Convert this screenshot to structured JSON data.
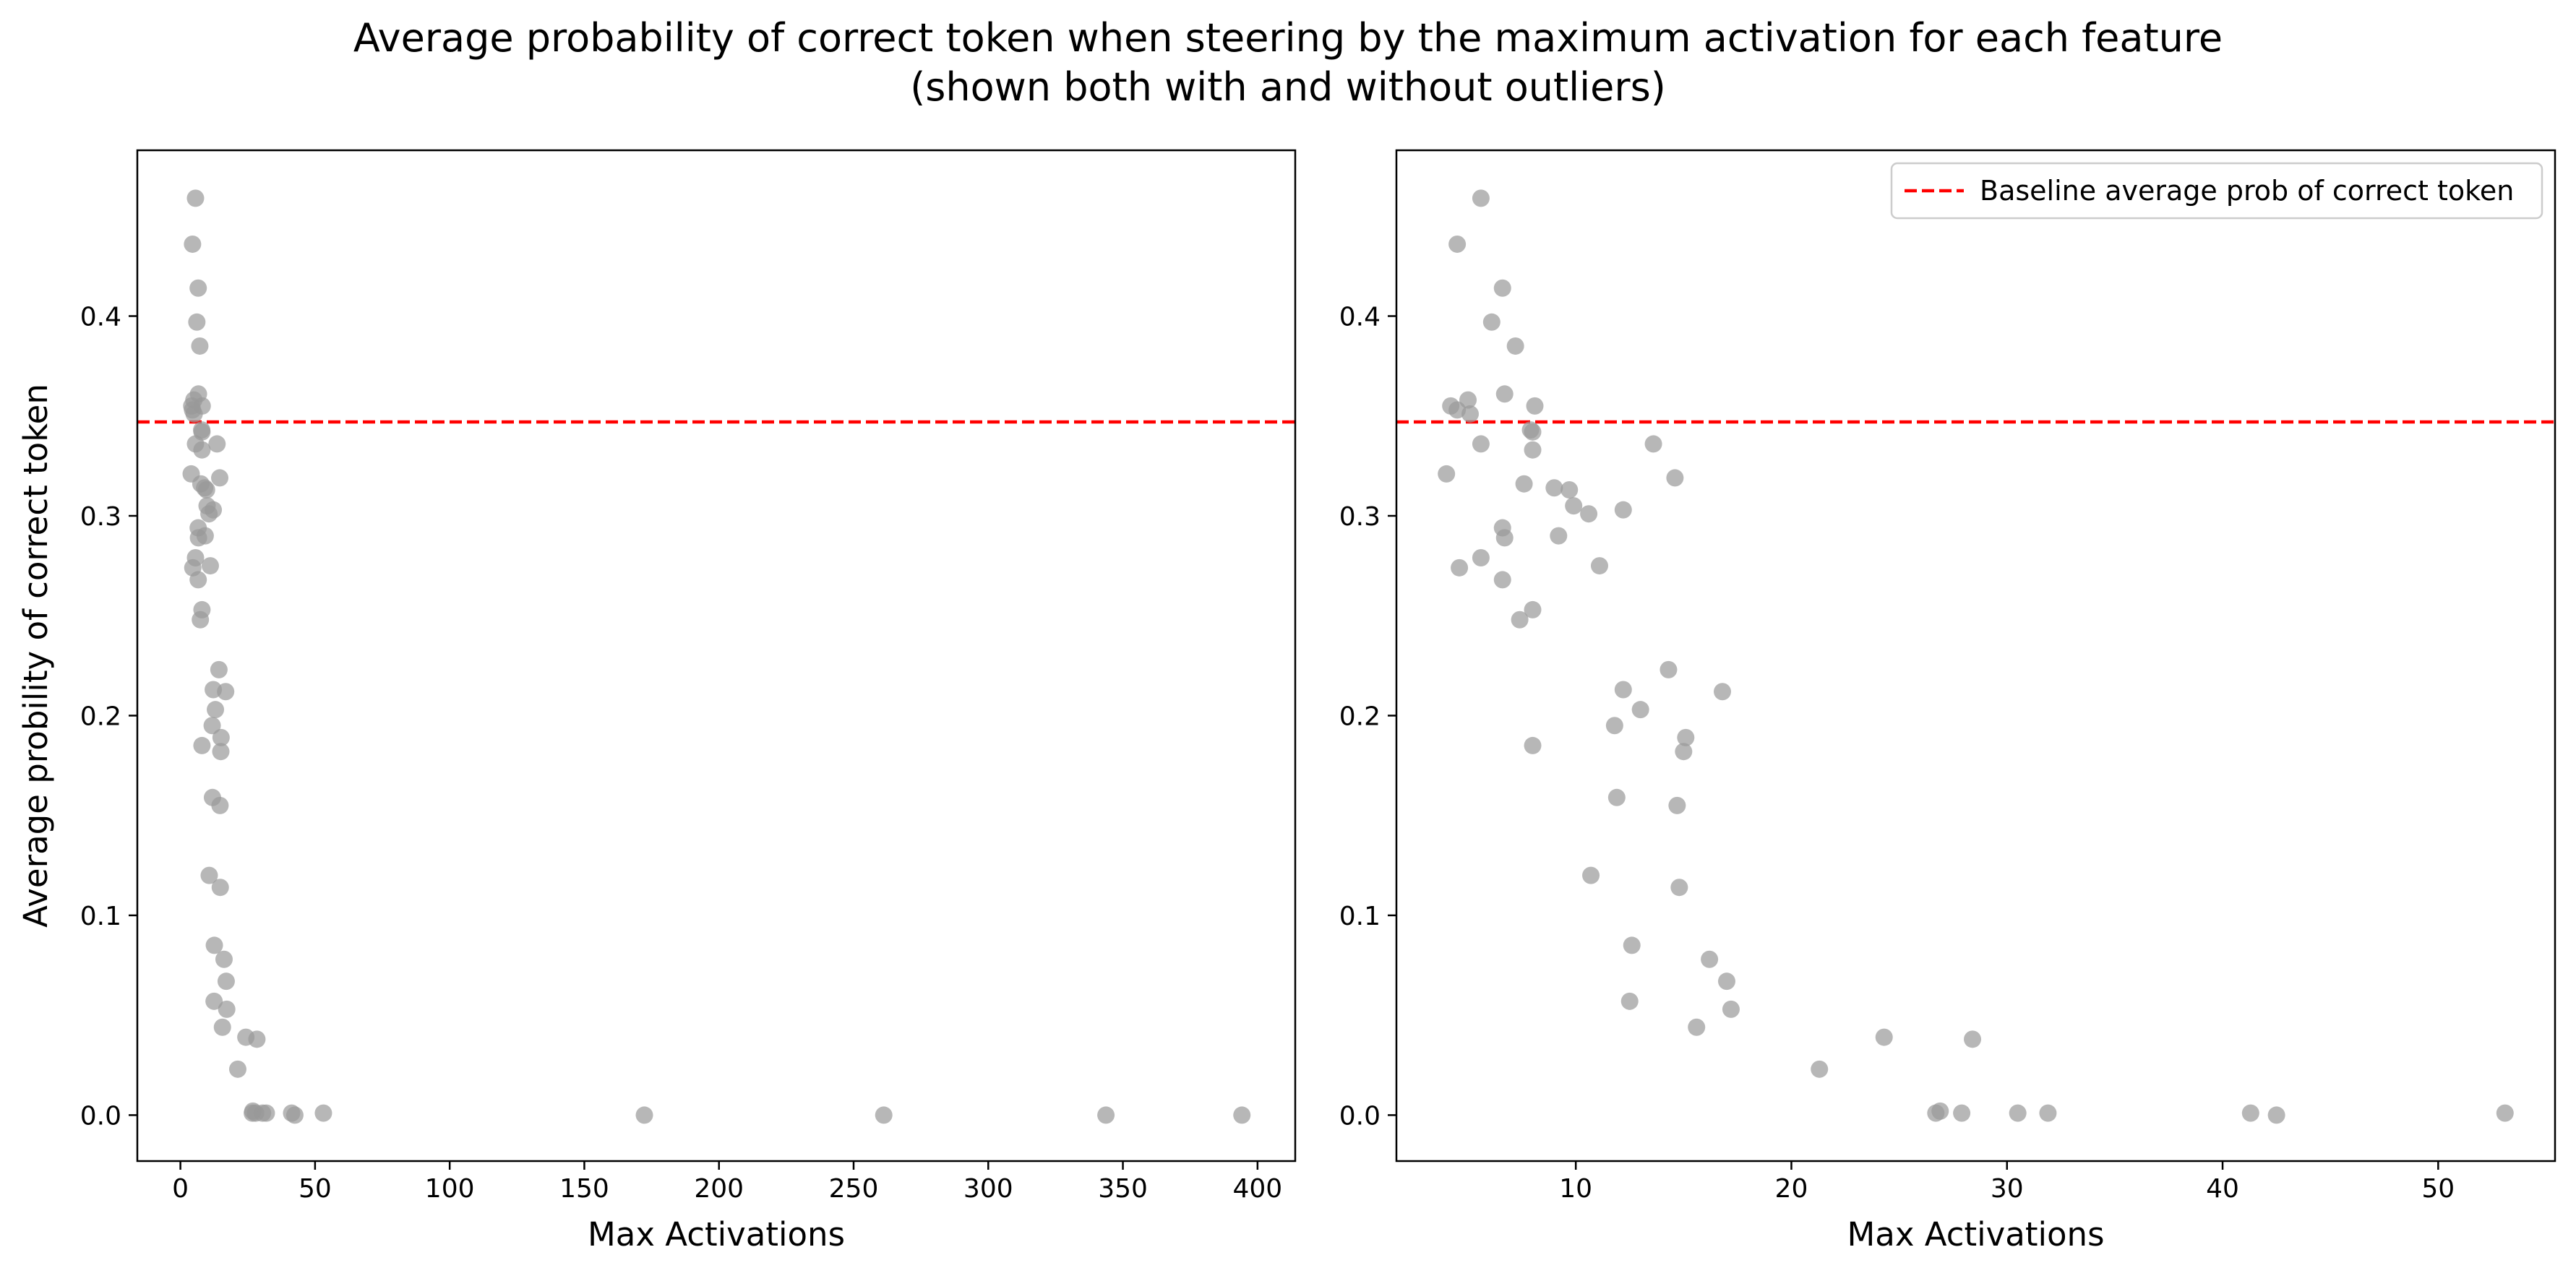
{
  "figure": {
    "title_line1": "Average probability of correct token when steering by the maximum activation for each feature",
    "title_line2": "(shown both with and without outliers)"
  },
  "chart_data": [
    {
      "type": "scatter",
      "xlabel": "Max Activations",
      "ylabel": "Average probility of correct token",
      "xlim": [
        -16,
        414
      ],
      "ylim": [
        -0.023,
        0.483
      ],
      "xticks": [
        0,
        50,
        100,
        150,
        200,
        250,
        300,
        350,
        400
      ],
      "yticks": [
        0.0,
        0.1,
        0.2,
        0.3,
        0.4
      ],
      "ytick_labels": [
        "0.0",
        "0.1",
        "0.2",
        "0.3",
        "0.4"
      ],
      "baseline": 0.347,
      "grid": false,
      "points": [
        [
          5.6,
          0.459
        ],
        [
          4.5,
          0.436
        ],
        [
          6.6,
          0.414
        ],
        [
          6.1,
          0.397
        ],
        [
          7.2,
          0.385
        ],
        [
          6.7,
          0.361
        ],
        [
          4.2,
          0.355
        ],
        [
          8.1,
          0.355
        ],
        [
          5.0,
          0.358
        ],
        [
          5.1,
          0.351
        ],
        [
          4.5,
          0.353
        ],
        [
          7.9,
          0.343
        ],
        [
          8.0,
          0.342
        ],
        [
          5.6,
          0.336
        ],
        [
          8.0,
          0.333
        ],
        [
          13.6,
          0.336
        ],
        [
          4.0,
          0.321
        ],
        [
          14.6,
          0.319
        ],
        [
          7.6,
          0.316
        ],
        [
          9.0,
          0.314
        ],
        [
          9.7,
          0.313
        ],
        [
          9.9,
          0.305
        ],
        [
          12.2,
          0.303
        ],
        [
          10.6,
          0.301
        ],
        [
          6.6,
          0.294
        ],
        [
          6.7,
          0.289
        ],
        [
          9.2,
          0.29
        ],
        [
          5.6,
          0.279
        ],
        [
          4.6,
          0.274
        ],
        [
          11.1,
          0.275
        ],
        [
          6.6,
          0.268
        ],
        [
          8.0,
          0.253
        ],
        [
          7.4,
          0.248
        ],
        [
          14.3,
          0.223
        ],
        [
          12.2,
          0.213
        ],
        [
          16.8,
          0.212
        ],
        [
          13.0,
          0.203
        ],
        [
          11.8,
          0.195
        ],
        [
          15.1,
          0.189
        ],
        [
          8.0,
          0.185
        ],
        [
          15.0,
          0.182
        ],
        [
          11.9,
          0.159
        ],
        [
          14.7,
          0.155
        ],
        [
          10.7,
          0.12
        ],
        [
          14.8,
          0.114
        ],
        [
          12.6,
          0.085
        ],
        [
          16.2,
          0.078
        ],
        [
          17.0,
          0.067
        ],
        [
          12.5,
          0.057
        ],
        [
          17.2,
          0.053
        ],
        [
          15.6,
          0.044
        ],
        [
          24.3,
          0.039
        ],
        [
          28.4,
          0.038
        ],
        [
          21.3,
          0.023
        ],
        [
          26.7,
          0.001
        ],
        [
          26.9,
          0.002
        ],
        [
          27.9,
          0.001
        ],
        [
          30.5,
          0.001
        ],
        [
          31.9,
          0.001
        ],
        [
          41.3,
          0.001
        ],
        [
          42.5,
          0.0
        ],
        [
          53.1,
          0.001
        ],
        [
          172.3,
          0.0
        ],
        [
          261.2,
          0.0
        ],
        [
          343.7,
          0.0
        ],
        [
          394.2,
          0.0
        ]
      ]
    },
    {
      "type": "scatter",
      "xlabel": "Max Activations",
      "xlim": [
        1.68,
        55.42
      ],
      "ylim": [
        -0.023,
        0.483
      ],
      "xticks": [
        10,
        20,
        30,
        40,
        50
      ],
      "yticks": [
        0.0,
        0.1,
        0.2,
        0.3,
        0.4
      ],
      "ytick_labels": [
        "0.0",
        "0.1",
        "0.2",
        "0.3",
        "0.4"
      ],
      "baseline": 0.347,
      "legend": {
        "label": "Baseline average prob of correct token",
        "placement": "upper-right"
      },
      "grid": false,
      "points": [
        [
          5.6,
          0.459
        ],
        [
          4.5,
          0.436
        ],
        [
          6.6,
          0.414
        ],
        [
          6.1,
          0.397
        ],
        [
          7.2,
          0.385
        ],
        [
          6.7,
          0.361
        ],
        [
          4.2,
          0.355
        ],
        [
          8.1,
          0.355
        ],
        [
          5.0,
          0.358
        ],
        [
          5.1,
          0.351
        ],
        [
          4.5,
          0.353
        ],
        [
          7.9,
          0.343
        ],
        [
          8.0,
          0.342
        ],
        [
          5.6,
          0.336
        ],
        [
          8.0,
          0.333
        ],
        [
          13.6,
          0.336
        ],
        [
          4.0,
          0.321
        ],
        [
          14.6,
          0.319
        ],
        [
          7.6,
          0.316
        ],
        [
          9.0,
          0.314
        ],
        [
          9.7,
          0.313
        ],
        [
          9.9,
          0.305
        ],
        [
          12.2,
          0.303
        ],
        [
          10.6,
          0.301
        ],
        [
          6.6,
          0.294
        ],
        [
          6.7,
          0.289
        ],
        [
          9.2,
          0.29
        ],
        [
          5.6,
          0.279
        ],
        [
          4.6,
          0.274
        ],
        [
          11.1,
          0.275
        ],
        [
          6.6,
          0.268
        ],
        [
          8.0,
          0.253
        ],
        [
          7.4,
          0.248
        ],
        [
          14.3,
          0.223
        ],
        [
          12.2,
          0.213
        ],
        [
          16.8,
          0.212
        ],
        [
          13.0,
          0.203
        ],
        [
          11.8,
          0.195
        ],
        [
          15.1,
          0.189
        ],
        [
          8.0,
          0.185
        ],
        [
          15.0,
          0.182
        ],
        [
          11.9,
          0.159
        ],
        [
          14.7,
          0.155
        ],
        [
          10.7,
          0.12
        ],
        [
          14.8,
          0.114
        ],
        [
          12.6,
          0.085
        ],
        [
          16.2,
          0.078
        ],
        [
          17.0,
          0.067
        ],
        [
          12.5,
          0.057
        ],
        [
          17.2,
          0.053
        ],
        [
          15.6,
          0.044
        ],
        [
          24.3,
          0.039
        ],
        [
          28.4,
          0.038
        ],
        [
          21.3,
          0.023
        ],
        [
          26.7,
          0.001
        ],
        [
          26.9,
          0.002
        ],
        [
          27.9,
          0.001
        ],
        [
          30.5,
          0.001
        ],
        [
          31.9,
          0.001
        ],
        [
          41.3,
          0.001
        ],
        [
          42.5,
          0.0
        ],
        [
          53.1,
          0.001
        ]
      ]
    }
  ],
  "colors": {
    "point": "#999999",
    "baseline": "#ff0000",
    "axis": "#000000"
  }
}
